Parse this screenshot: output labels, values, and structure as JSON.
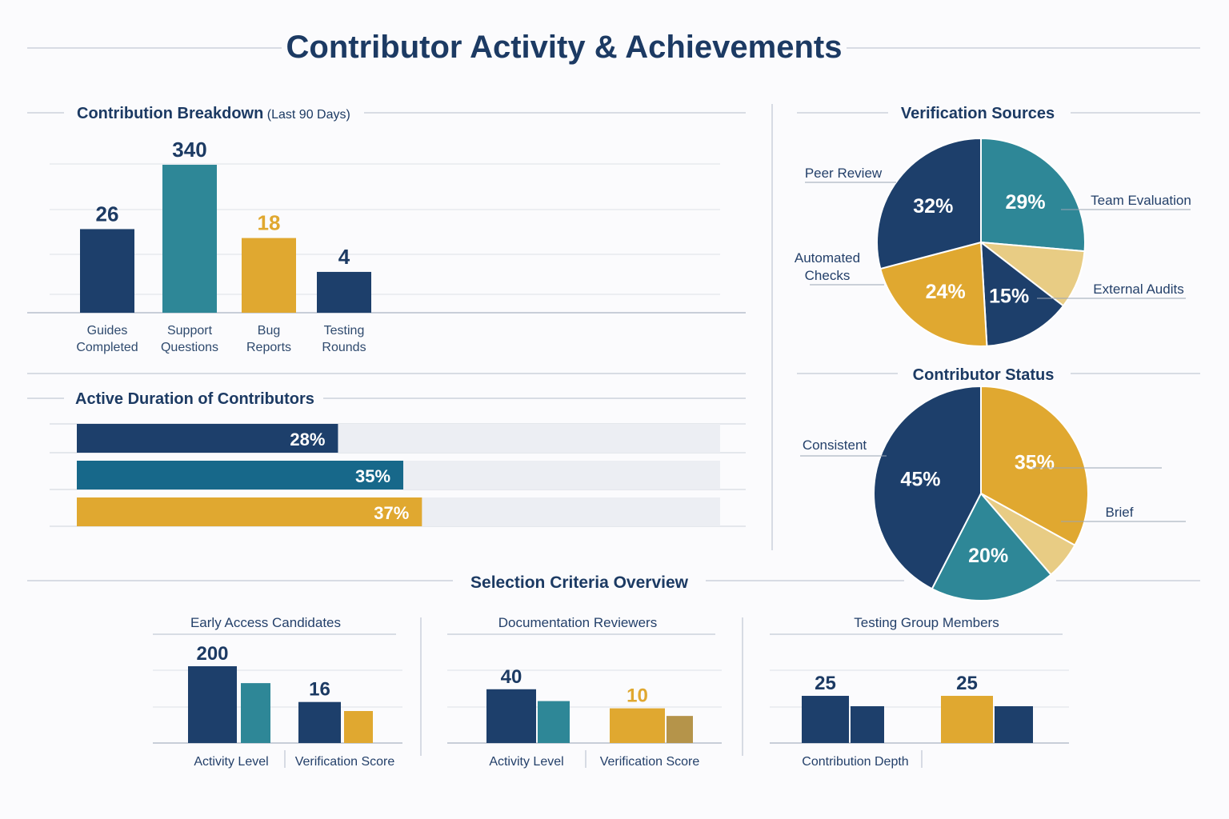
{
  "title": "Contributor Activity & Achievements",
  "colors": {
    "navy": "#1d3f6b",
    "teal": "#2e8797",
    "dark_teal": "#17688a",
    "gold": "#e0a830",
    "light_gold": "#e8cc84",
    "olive_gold": "#b5944a",
    "text": "#1c3a63",
    "rule": "#c4cad6",
    "track": "#eceef3"
  },
  "chart_data": [
    {
      "type": "bar",
      "title": "Contribution Breakdown",
      "subtitle": "(Last 90 Days)",
      "categories": [
        "Guides Completed",
        "Support Questions",
        "Bug Reports",
        "Testing Rounds"
      ],
      "values": [
        26,
        340,
        18,
        4
      ],
      "bar_colors": [
        "navy",
        "teal",
        "gold",
        "navy"
      ],
      "label_colors": [
        "text",
        "text",
        "gold",
        "text"
      ],
      "grid": true
    },
    {
      "type": "bar",
      "orientation": "horizontal",
      "title": "Active Duration of Contributors",
      "values": [
        28,
        35,
        37
      ],
      "labels": [
        "28%",
        "35%",
        "37%"
      ],
      "bar_colors": [
        "navy",
        "dark_teal",
        "gold"
      ],
      "xlim": [
        0,
        100
      ]
    },
    {
      "type": "pie",
      "title": "Verification Sources",
      "slices": [
        {
          "name": "Team Evaluation",
          "value": 29,
          "label": "29%",
          "color": "teal"
        },
        {
          "name": "External Audits",
          "value": 10,
          "label": "",
          "color": "light_gold"
        },
        {
          "name": "",
          "value": 15,
          "label": "15%",
          "color": "navy"
        },
        {
          "name": "Automated Checks",
          "value": 24,
          "label": "24%",
          "color": "gold"
        },
        {
          "name": "Peer Review",
          "value": 32,
          "label": "32%",
          "color": "navy"
        }
      ]
    },
    {
      "type": "pie",
      "title": "Contributor Status",
      "slices": [
        {
          "name": "",
          "value": 35,
          "label": "35%",
          "color": "gold"
        },
        {
          "name": "Brief",
          "value": 6,
          "label": "",
          "color": "light_gold"
        },
        {
          "name": "",
          "value": 20,
          "label": "20%",
          "color": "teal"
        },
        {
          "name": "Consistent",
          "value": 45,
          "label": "45%",
          "color": "navy"
        }
      ]
    },
    {
      "type": "bar",
      "section_title": "Selection Criteria Overview",
      "panels": [
        {
          "title": "Early Access Candidates",
          "groups": [
            {
              "label": "Activity Level",
              "value": 200,
              "value_color": "text",
              "colors": [
                "navy",
                "teal"
              ]
            },
            {
              "label": "Verification Score",
              "value": 16,
              "value_color": "text",
              "colors": [
                "navy",
                "gold"
              ]
            }
          ]
        },
        {
          "title": "Documentation Reviewers",
          "groups": [
            {
              "label": "Activity Level",
              "value": 40,
              "value_color": "text",
              "colors": [
                "navy",
                "teal"
              ]
            },
            {
              "label": "Verification Score",
              "value": 10,
              "value_color": "gold",
              "colors": [
                "gold",
                "olive_gold"
              ]
            }
          ]
        },
        {
          "title": "Testing Group Members",
          "groups": [
            {
              "label": "Contribution Depth",
              "value": 25,
              "value_color": "text",
              "colors": [
                "navy",
                "navy"
              ]
            },
            {
              "label": "",
              "value": 25,
              "value_color": "text",
              "colors": [
                "gold",
                "navy"
              ]
            }
          ]
        }
      ]
    }
  ]
}
